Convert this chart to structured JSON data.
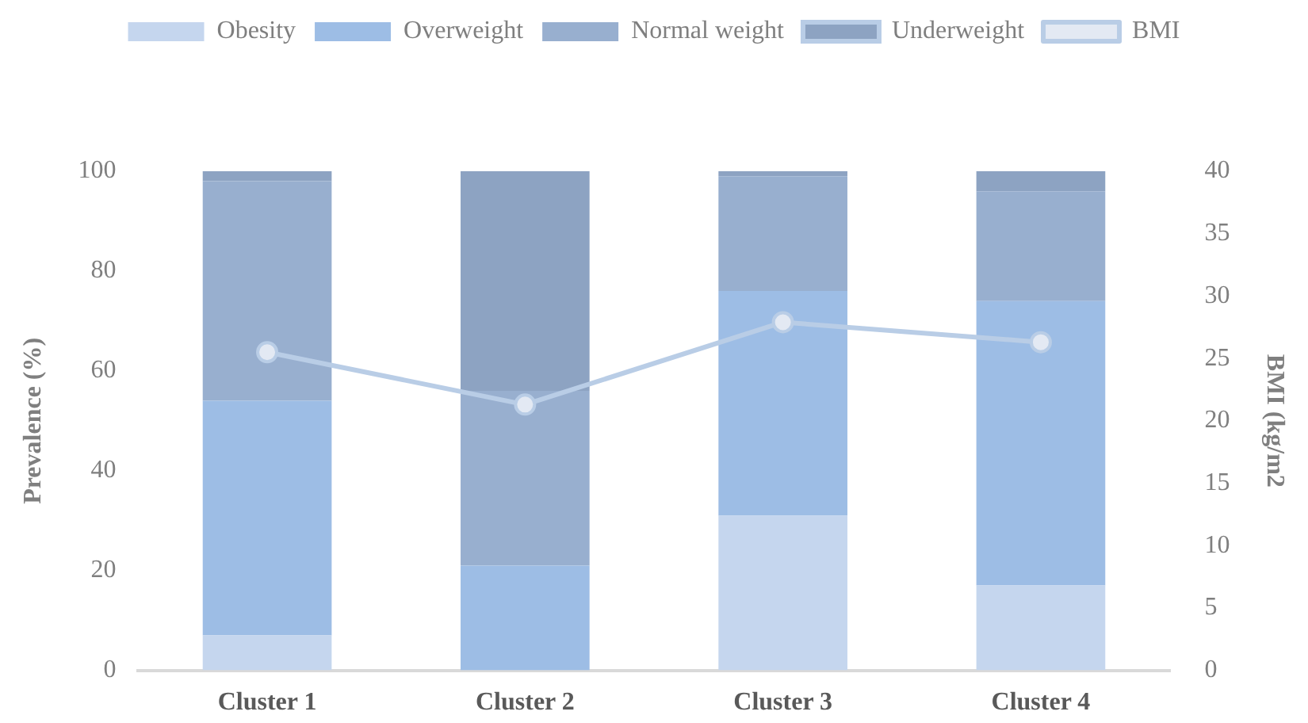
{
  "chart_data": {
    "type": "bar",
    "stacked": true,
    "categories": [
      "Cluster 1",
      "Cluster 2",
      "Cluster 3",
      "Cluster 4"
    ],
    "ylabel": "Prevalence (%)",
    "y2label": "BMI (kg/m2",
    "ylim": [
      0,
      100
    ],
    "yticks": [
      0,
      20,
      40,
      60,
      80,
      100
    ],
    "y2lim": [
      0,
      40
    ],
    "y2ticks": [
      0,
      5,
      10,
      15,
      20,
      25,
      30,
      35,
      40
    ],
    "legend": "top",
    "grid": false,
    "series": [
      {
        "name": "Obesity",
        "color": "#c5d6ee",
        "values": [
          7,
          0,
          31,
          17
        ]
      },
      {
        "name": "Overweight",
        "color": "#9dbde5",
        "values": [
          47,
          21,
          45,
          57
        ]
      },
      {
        "name": "Normal weight",
        "color": "#98afcf",
        "values": [
          44,
          35,
          23,
          22
        ]
      },
      {
        "name": "Underweight",
        "color": "#8da3c2",
        "values": [
          2,
          44,
          1,
          4
        ]
      },
      {
        "name": "BMI",
        "type": "line",
        "axis": "y2",
        "marker": "circle",
        "color": "#b9cde6",
        "values": [
          25.5,
          21.3,
          27.9,
          26.3
        ]
      }
    ]
  }
}
